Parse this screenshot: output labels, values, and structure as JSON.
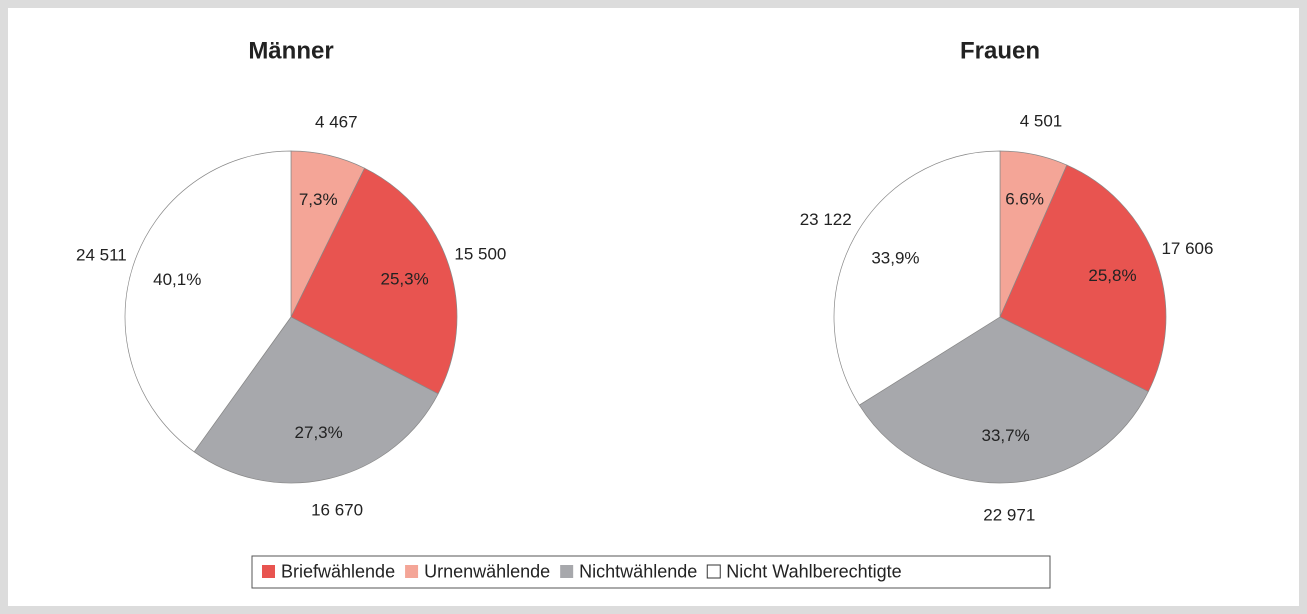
{
  "chart_data": [
    {
      "type": "pie",
      "title": "Männer",
      "categories": [
        "Urnenwählende",
        "Briefwählende",
        "Nichtwählende",
        "Nicht Wahlberechtigte"
      ],
      "values": [
        4467,
        15500,
        16670,
        24511
      ],
      "value_labels": [
        "4 467",
        "15 500",
        "16 670",
        "24 511"
      ],
      "percent_labels": [
        "7,3%",
        "25,3%",
        "27,3%",
        "40,1%"
      ],
      "colors": [
        "#f4a597",
        "#e85450",
        "#a7a8ac",
        "#ffffff"
      ]
    },
    {
      "type": "pie",
      "title": "Frauen",
      "categories": [
        "Urnenwählende",
        "Briefwählende",
        "Nichtwählende",
        "Nicht Wahlberechtigte"
      ],
      "values": [
        4501,
        17606,
        22971,
        23122
      ],
      "value_labels": [
        "4 501",
        "17 606",
        "22 971",
        "23 122"
      ],
      "percent_labels": [
        "6.6%",
        "25,8%",
        "33,7%",
        "33,9%"
      ],
      "colors": [
        "#f4a597",
        "#e85450",
        "#a7a8ac",
        "#ffffff"
      ]
    }
  ],
  "legend": {
    "items": [
      {
        "name": "Briefwählende",
        "color": "#e85450"
      },
      {
        "name": "Urnenwählende",
        "color": "#f4a597"
      },
      {
        "name": "Nichtwählende",
        "color": "#a7a8ac"
      },
      {
        "name": "Nicht Wahlberechtigte",
        "color": "#ffffff"
      }
    ]
  }
}
